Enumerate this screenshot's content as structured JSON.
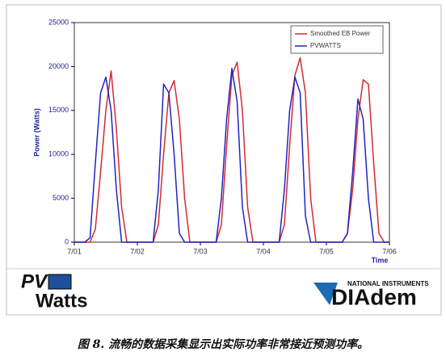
{
  "chart_data": {
    "type": "line",
    "x_label": "Time",
    "y_label": "Power (Watts)",
    "x": [
      0,
      2,
      4,
      6,
      8,
      10,
      12,
      14,
      16,
      18,
      20,
      22,
      24,
      26,
      28,
      30,
      32,
      34,
      36,
      38,
      40,
      42,
      44,
      46,
      48,
      50,
      52,
      54,
      56,
      58,
      60,
      62,
      64,
      66,
      68,
      70,
      72,
      74,
      76,
      78,
      80,
      82,
      84,
      86,
      88,
      90,
      92,
      94,
      96,
      98,
      100,
      102,
      104,
      106,
      108,
      110,
      112,
      114,
      116,
      118,
      120
    ],
    "xlim": [
      0,
      120
    ],
    "xticks": [
      {
        "value": 0,
        "label": "7/01"
      },
      {
        "value": 24,
        "label": "7/02"
      },
      {
        "value": 48,
        "label": "7/03"
      },
      {
        "value": 72,
        "label": "7/04"
      },
      {
        "value": 96,
        "label": "7/05"
      },
      {
        "value": 120,
        "label": "7/06"
      }
    ],
    "ylim": [
      0,
      25000
    ],
    "yticks": [
      0,
      5000,
      10000,
      15000,
      20000,
      25000
    ],
    "grid": false,
    "legend": "upper right",
    "series": [
      {
        "name": "Smoothed EB Power",
        "color": "#d42a2f",
        "values": [
          0,
          0,
          0,
          0,
          1500,
          8000,
          15000,
          19500,
          13000,
          4000,
          0,
          0,
          0,
          0,
          0,
          0,
          2000,
          10000,
          17000,
          18400,
          14000,
          5000,
          0,
          0,
          0,
          0,
          0,
          0,
          2000,
          11000,
          19000,
          20500,
          15000,
          4000,
          0,
          0,
          0,
          0,
          0,
          0,
          2000,
          11000,
          19000,
          21000,
          17000,
          5000,
          0,
          0,
          0,
          0,
          0,
          0,
          1000,
          6000,
          14000,
          18500,
          18000,
          9000,
          1000,
          0,
          0
        ]
      },
      {
        "name": "PVWATTS",
        "color": "#2323c4",
        "values": [
          0,
          0,
          0,
          500,
          9000,
          17000,
          18800,
          15000,
          6000,
          0,
          0,
          0,
          0,
          0,
          0,
          0,
          6000,
          18000,
          17000,
          10000,
          1000,
          0,
          0,
          0,
          0,
          0,
          0,
          0,
          5000,
          14000,
          19800,
          16000,
          4000,
          0,
          0,
          0,
          0,
          0,
          0,
          0,
          6000,
          15000,
          18800,
          17000,
          3000,
          0,
          0,
          0,
          0,
          0,
          0,
          0,
          1000,
          8000,
          16300,
          14000,
          5000,
          0,
          0,
          0,
          0
        ]
      }
    ]
  },
  "logos": {
    "pv": "PV",
    "watts": "Watts",
    "ni": "NATIONAL INSTRUMENTS",
    "diadem": "DIAdem"
  },
  "caption": "图 8. 流畅的数据采集显示出实际功率非常接近预测功率。"
}
